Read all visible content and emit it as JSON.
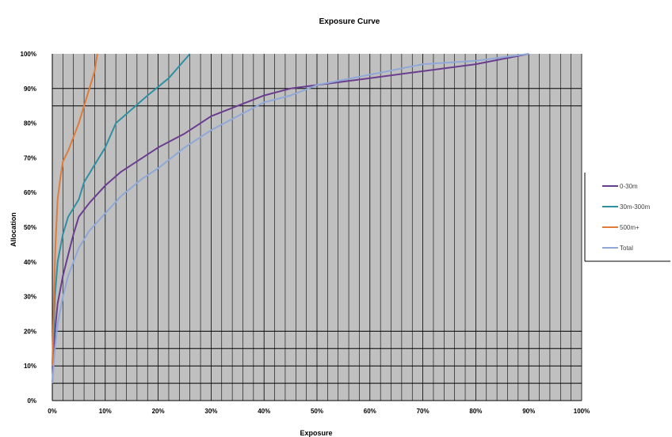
{
  "chart_data": {
    "type": "line",
    "title": "Exposure Curve",
    "xlabel": "Exposure",
    "ylabel": "Allocation",
    "xlim": [
      0,
      100
    ],
    "ylim": [
      0,
      100
    ],
    "x_ticks": [
      "0%",
      "10%",
      "20%",
      "30%",
      "40%",
      "50%",
      "60%",
      "70%",
      "80%",
      "90%",
      "100%"
    ],
    "y_ticks": [
      "0%",
      "10%",
      "20%",
      "30%",
      "40%",
      "50%",
      "60%",
      "70%",
      "80%",
      "90%",
      "100%"
    ],
    "reference_lines_y": [
      5,
      10,
      15,
      20,
      85,
      90
    ],
    "grid": true,
    "plot_background": "#c0c0c0",
    "legend_position": "right",
    "series": [
      {
        "name": "0-30m",
        "color": "#6a3d8f",
        "points": [
          [
            0,
            5
          ],
          [
            0.5,
            20
          ],
          [
            1,
            28
          ],
          [
            2,
            36
          ],
          [
            3,
            42
          ],
          [
            4,
            48
          ],
          [
            5,
            53
          ],
          [
            7,
            57
          ],
          [
            10,
            62
          ],
          [
            13,
            66
          ],
          [
            17,
            70
          ],
          [
            20,
            73
          ],
          [
            25,
            77
          ],
          [
            30,
            82
          ],
          [
            35,
            85
          ],
          [
            40,
            88
          ],
          [
            45,
            90
          ],
          [
            50,
            91
          ],
          [
            60,
            93
          ],
          [
            70,
            95
          ],
          [
            80,
            97
          ],
          [
            90,
            100
          ]
        ]
      },
      {
        "name": "30m-300m",
        "color": "#2f8fa3",
        "points": [
          [
            0,
            10
          ],
          [
            0.5,
            30
          ],
          [
            1,
            40
          ],
          [
            2,
            48
          ],
          [
            3,
            53
          ],
          [
            5,
            58
          ],
          [
            6,
            63
          ],
          [
            8,
            68
          ],
          [
            10,
            73
          ],
          [
            12,
            80
          ],
          [
            15,
            84
          ],
          [
            18,
            88
          ],
          [
            22,
            93
          ],
          [
            26,
            100
          ]
        ]
      },
      {
        "name": "500m+",
        "color": "#e07b39",
        "points": [
          [
            0,
            10
          ],
          [
            0.3,
            30
          ],
          [
            0.6,
            45
          ],
          [
            1,
            58
          ],
          [
            1.5,
            64
          ],
          [
            2,
            69
          ],
          [
            3,
            72
          ],
          [
            4,
            76
          ],
          [
            5,
            80
          ],
          [
            6,
            85
          ],
          [
            7,
            90
          ],
          [
            8,
            95
          ],
          [
            8.5,
            100
          ]
        ]
      },
      {
        "name": "Total",
        "color": "#8fa8d8",
        "points": [
          [
            0,
            5
          ],
          [
            0.5,
            15
          ],
          [
            1,
            22
          ],
          [
            2,
            30
          ],
          [
            3,
            36
          ],
          [
            4,
            40
          ],
          [
            5,
            44
          ],
          [
            7,
            49
          ],
          [
            10,
            54
          ],
          [
            13,
            59
          ],
          [
            17,
            64
          ],
          [
            20,
            67
          ],
          [
            25,
            73
          ],
          [
            30,
            78
          ],
          [
            35,
            82
          ],
          [
            40,
            86
          ],
          [
            45,
            88
          ],
          [
            50,
            91
          ],
          [
            60,
            94
          ],
          [
            70,
            97
          ],
          [
            80,
            98
          ],
          [
            90,
            100
          ]
        ]
      }
    ]
  }
}
